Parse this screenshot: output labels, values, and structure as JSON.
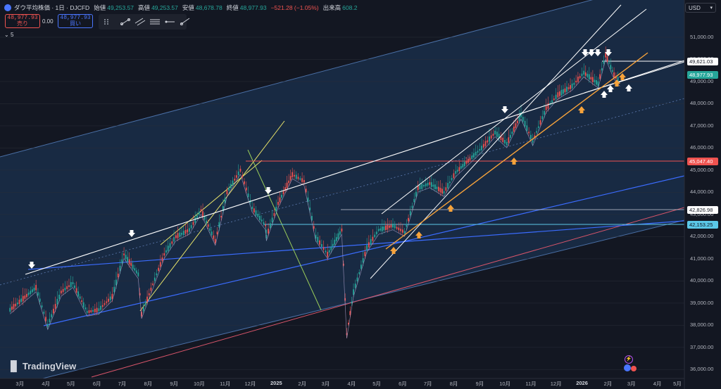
{
  "header": {
    "symbol": "ダウ平均株価 · 1日 · DJCFD",
    "open_label": "始値",
    "open": "49,253.57",
    "high_label": "高値",
    "high": "49,253.57",
    "low_label": "安値",
    "low": "48,678.78",
    "close_label": "終値",
    "close": "48,977.93",
    "change": "−521.28 (−1.05%)",
    "volume_label": "出来高",
    "volume": "608.2"
  },
  "trade": {
    "sell_price": "48,977.93",
    "sell_label": "売り",
    "spread": "0.00",
    "buy_price": "48,977.93",
    "buy_label": "買い"
  },
  "indicator": {
    "label": "5"
  },
  "currency": {
    "label": "USD"
  },
  "branding": {
    "name": "TradingView"
  },
  "colors": {
    "background": "#131722",
    "up": "#26a69a",
    "down": "#ef5350",
    "channel_fill": "#1e3a5f",
    "white_line": "#ffffff",
    "orange_line": "#f7a33b",
    "yellow_line": "#e8e36a",
    "blue_line": "#3b6cff",
    "red_line": "#d9556a",
    "green_line": "#9acd5a",
    "red_hline": "#ef5350",
    "cyan_hline": "#5bc8e8"
  },
  "price_labels": [
    {
      "text": "49,621.03",
      "bg": "#ffffff",
      "fg": "#131722"
    },
    {
      "text": "48,977.93",
      "bg": "#26a69a",
      "fg": "#ffffff"
    },
    {
      "text": "45,047.40",
      "bg": "#ef5350",
      "fg": "#ffffff"
    },
    {
      "text": "42,826.98",
      "bg": "#ffffff",
      "fg": "#131722"
    },
    {
      "text": "42,153.25",
      "bg": "#5bc8e8",
      "fg": "#131722"
    }
  ],
  "chart_data": {
    "type": "line",
    "series_type": "candlestick (daily)",
    "ylim": [
      35600,
      52300
    ],
    "y_ticks": [
      "51,000.00",
      "50,000.00",
      "49,000.00",
      "48,000.00",
      "47,000.00",
      "46,000.00",
      "45,000.00",
      "44,000.00",
      "43,000.00",
      "42,000.00",
      "41,000.00",
      "40,000.00",
      "39,000.00",
      "38,000.00",
      "37,000.00",
      "36,000.00"
    ],
    "x_ticks": [
      "3月",
      "4月",
      "5月",
      "6月",
      "7月",
      "8月",
      "9月",
      "10月",
      "11月",
      "12月",
      "2025",
      "2月",
      "3月",
      "4月",
      "5月",
      "6月",
      "7月",
      "8月",
      "9月",
      "10月",
      "11月",
      "12月",
      "2026",
      "2月",
      "3月",
      "4月",
      "5月"
    ],
    "close_path": [
      {
        "x": "2024-03",
        "y": 38700
      },
      {
        "x": "2024-04",
        "y": 39700
      },
      {
        "x": "2024-04-15",
        "y": 38000
      },
      {
        "x": "2024-05",
        "y": 39500
      },
      {
        "x": "2024-05-15",
        "y": 39900
      },
      {
        "x": "2024-06",
        "y": 38600
      },
      {
        "x": "2024-06-15",
        "y": 38700
      },
      {
        "x": "2024-07",
        "y": 39300
      },
      {
        "x": "2024-07-15",
        "y": 41200
      },
      {
        "x": "2024-08",
        "y": 40300
      },
      {
        "x": "2024-08-05",
        "y": 38500
      },
      {
        "x": "2024-09",
        "y": 41200
      },
      {
        "x": "2024-09-15",
        "y": 42000
      },
      {
        "x": "2024-10",
        "y": 42300
      },
      {
        "x": "2024-10-15",
        "y": 43200
      },
      {
        "x": "2024-11",
        "y": 41800
      },
      {
        "x": "2024-11-15",
        "y": 44000
      },
      {
        "x": "2024-12",
        "y": 45000
      },
      {
        "x": "2024-12-15",
        "y": 43300
      },
      {
        "x": "2024-12-31",
        "y": 42500
      },
      {
        "x": "2025-01",
        "y": 42000
      },
      {
        "x": "2025-01-15",
        "y": 43500
      },
      {
        "x": "2025-02",
        "y": 44800
      },
      {
        "x": "2025-02-15",
        "y": 44500
      },
      {
        "x": "2025-03",
        "y": 42000
      },
      {
        "x": "2025-03-15",
        "y": 41200
      },
      {
        "x": "2025-04",
        "y": 42300
      },
      {
        "x": "2025-04-07",
        "y": 37600
      },
      {
        "x": "2025-04-15",
        "y": 39500
      },
      {
        "x": "2025-05",
        "y": 41500
      },
      {
        "x": "2025-05-15",
        "y": 42300
      },
      {
        "x": "2025-06",
        "y": 42500
      },
      {
        "x": "2025-06-15",
        "y": 42200
      },
      {
        "x": "2025-07",
        "y": 44200
      },
      {
        "x": "2025-07-15",
        "y": 44400
      },
      {
        "x": "2025-08",
        "y": 44000
      },
      {
        "x": "2025-08-15",
        "y": 44900
      },
      {
        "x": "2025-09",
        "y": 45500
      },
      {
        "x": "2025-09-15",
        "y": 46000
      },
      {
        "x": "2025-10",
        "y": 46700
      },
      {
        "x": "2025-10-15",
        "y": 46200
      },
      {
        "x": "2025-11",
        "y": 47500
      },
      {
        "x": "2025-11-15",
        "y": 46300
      },
      {
        "x": "2025-12",
        "y": 47800
      },
      {
        "x": "2025-12-15",
        "y": 48400
      },
      {
        "x": "2026-01",
        "y": 48800
      },
      {
        "x": "2026-01-15",
        "y": 49400
      },
      {
        "x": "2026-02",
        "y": 48900
      },
      {
        "x": "2026-02-10",
        "y": 50200
      },
      {
        "x": "2026-02-20",
        "y": 49300
      },
      {
        "x": "2026-02-27",
        "y": 48978
      }
    ],
    "horizontal_levels": [
      49621.03,
      48977.93,
      45047.4,
      42826.98,
      42153.25
    ]
  }
}
